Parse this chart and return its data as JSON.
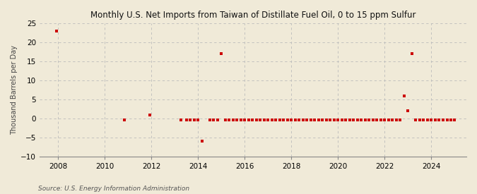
{
  "title": "Monthly U.S. Net Imports from Taiwan of Distillate Fuel Oil, 0 to 15 ppm Sulfur",
  "ylabel": "Thousand Barrels per Day",
  "source": "Source: U.S. Energy Information Administration",
  "background_color": "#f0ead8",
  "plot_bg_color": "#f0ead8",
  "ylim": [
    -10,
    25
  ],
  "yticks": [
    -10,
    -5,
    0,
    5,
    10,
    15,
    20,
    25
  ],
  "xlim": [
    2007.2,
    2025.5
  ],
  "xticks": [
    2008,
    2010,
    2012,
    2014,
    2016,
    2018,
    2020,
    2022,
    2024
  ],
  "marker_color": "#cc0000",
  "data_points": [
    [
      2007.917,
      23.0
    ],
    [
      2010.833,
      -0.3
    ],
    [
      2011.917,
      1.0
    ],
    [
      2013.25,
      -0.3
    ],
    [
      2013.5,
      -0.3
    ],
    [
      2013.667,
      -0.3
    ],
    [
      2013.833,
      -0.3
    ],
    [
      2014.0,
      -0.3
    ],
    [
      2014.167,
      -6.0
    ],
    [
      2014.5,
      -0.3
    ],
    [
      2014.667,
      -0.3
    ],
    [
      2014.833,
      -0.3
    ],
    [
      2015.0,
      17.0
    ],
    [
      2015.167,
      -0.3
    ],
    [
      2015.333,
      -0.3
    ],
    [
      2015.5,
      -0.3
    ],
    [
      2015.667,
      -0.3
    ],
    [
      2015.833,
      -0.3
    ],
    [
      2016.0,
      -0.3
    ],
    [
      2016.167,
      -0.3
    ],
    [
      2016.333,
      -0.3
    ],
    [
      2016.5,
      -0.3
    ],
    [
      2016.667,
      -0.3
    ],
    [
      2016.833,
      -0.3
    ],
    [
      2017.0,
      -0.3
    ],
    [
      2017.167,
      -0.3
    ],
    [
      2017.333,
      -0.3
    ],
    [
      2017.5,
      -0.3
    ],
    [
      2017.667,
      -0.3
    ],
    [
      2017.833,
      -0.3
    ],
    [
      2018.0,
      -0.3
    ],
    [
      2018.167,
      -0.3
    ],
    [
      2018.333,
      -0.3
    ],
    [
      2018.5,
      -0.3
    ],
    [
      2018.667,
      -0.3
    ],
    [
      2018.833,
      -0.3
    ],
    [
      2019.0,
      -0.3
    ],
    [
      2019.167,
      -0.3
    ],
    [
      2019.333,
      -0.3
    ],
    [
      2019.5,
      -0.3
    ],
    [
      2019.667,
      -0.3
    ],
    [
      2019.833,
      -0.3
    ],
    [
      2020.0,
      -0.3
    ],
    [
      2020.167,
      -0.3
    ],
    [
      2020.333,
      -0.3
    ],
    [
      2020.5,
      -0.3
    ],
    [
      2020.667,
      -0.3
    ],
    [
      2020.833,
      -0.3
    ],
    [
      2021.0,
      -0.3
    ],
    [
      2021.167,
      -0.3
    ],
    [
      2021.333,
      -0.3
    ],
    [
      2021.5,
      -0.3
    ],
    [
      2021.667,
      -0.3
    ],
    [
      2021.833,
      -0.3
    ],
    [
      2022.0,
      -0.3
    ],
    [
      2022.167,
      -0.3
    ],
    [
      2022.333,
      -0.3
    ],
    [
      2022.5,
      -0.3
    ],
    [
      2022.667,
      -0.3
    ],
    [
      2022.833,
      6.0
    ],
    [
      2023.0,
      2.0
    ],
    [
      2023.167,
      17.0
    ],
    [
      2023.333,
      -0.3
    ],
    [
      2023.5,
      -0.3
    ],
    [
      2023.667,
      -0.3
    ],
    [
      2023.833,
      -0.3
    ],
    [
      2024.0,
      -0.3
    ],
    [
      2024.167,
      -0.3
    ],
    [
      2024.333,
      -0.3
    ],
    [
      2024.5,
      -0.3
    ],
    [
      2024.667,
      -0.3
    ],
    [
      2024.833,
      -0.3
    ],
    [
      2025.0,
      -0.3
    ]
  ]
}
